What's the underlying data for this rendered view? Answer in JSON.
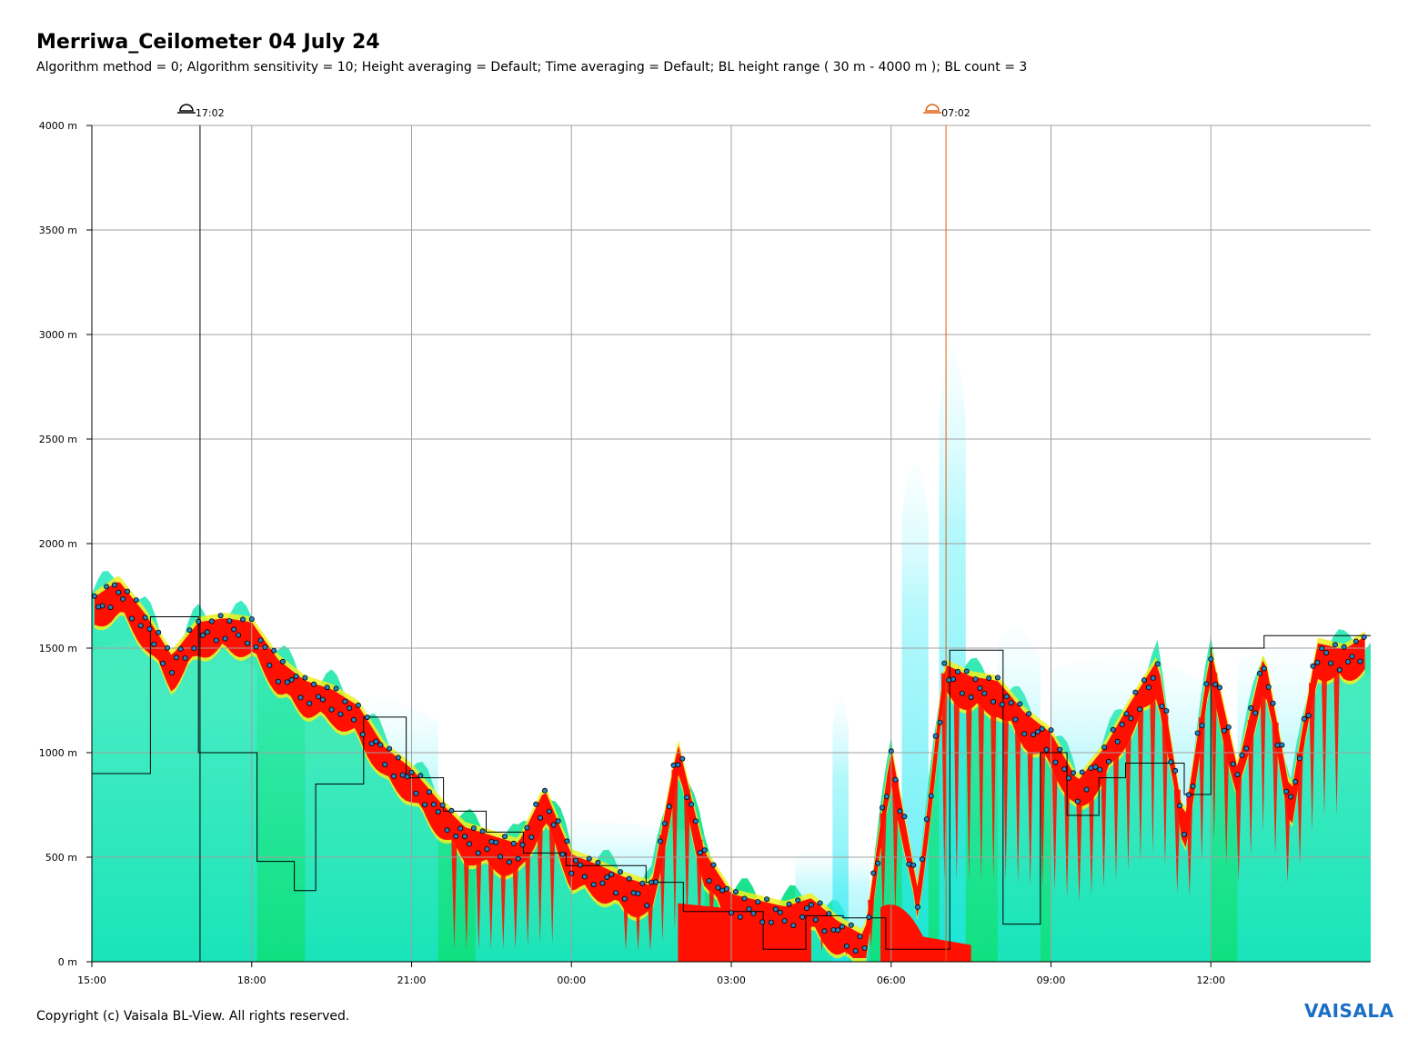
{
  "title": "Merriwa_Ceilometer 04 July 24",
  "subtitle": "Algorithm method = 0; Algorithm sensitivity = 10; Height averaging = Default; Time averaging = Default; BL height range ( 30 m - 4000 m ); BL count = 3",
  "footer": "Copyright (c) Vaisala BL-View. All rights reserved.",
  "brand": "VAISALA",
  "colors": {
    "grid": "#a0a0a0",
    "sunset_line": "#000000",
    "sunrise_line": "#e06010",
    "backscatter_low": "#10e090",
    "backscatter_haze": "#20e8f0",
    "backscatter_mid": "#f0f020",
    "backscatter_high": "#ff1000",
    "bl_marker_fill": "#2a7fc0",
    "bl_marker_stroke": "#000000",
    "bl_step_line": "#000000"
  },
  "chart_data": {
    "type": "heatmap",
    "description_series": [
      "Backscatter intensity",
      "Boundary layer height (detected)"
    ],
    "xlabel": "",
    "ylabel": "",
    "x_ticks": [
      "15:00",
      "18:00",
      "21:00",
      "00:00",
      "03:00",
      "06:00",
      "09:00",
      "12:00"
    ],
    "y_ticks": [
      "0 m",
      "500 m",
      "1000 m",
      "1500 m",
      "2000 m",
      "2500 m",
      "3000 m",
      "3500 m",
      "4000 m"
    ],
    "x_range_hours": [
      0,
      24
    ],
    "y_range_m": [
      0,
      4000
    ],
    "grid": true,
    "markers": [
      {
        "name": "sunset",
        "label": "17:02",
        "hour": 2.03
      },
      {
        "name": "sunrise",
        "label": "07:02",
        "hour": 16.03
      }
    ],
    "bl_height": {
      "x": [
        0.05,
        0.5,
        1.0,
        1.5,
        2.0,
        2.5,
        3.0,
        3.5,
        4.0,
        4.5,
        5.0,
        5.5,
        6.0,
        6.5,
        7.0,
        7.5,
        8.0,
        8.5,
        9.0,
        9.5,
        10.0,
        10.5,
        11.0,
        11.5,
        12.0,
        12.5,
        13.0,
        13.5,
        14.0,
        14.5,
        15.0,
        15.5,
        16.0,
        16.5,
        17.0,
        17.5,
        18.0,
        18.5,
        19.0,
        19.5,
        20.0,
        20.5,
        21.0,
        21.5,
        22.0,
        22.5,
        23.0,
        23.5,
        23.95
      ],
      "values": [
        1700,
        1780,
        1620,
        1420,
        1580,
        1600,
        1580,
        1400,
        1300,
        1260,
        1180,
        980,
        880,
        730,
        600,
        560,
        520,
        780,
        470,
        420,
        360,
        320,
        1000,
        480,
        280,
        250,
        220,
        260,
        150,
        80,
        980,
        300,
        1380,
        1320,
        1300,
        1150,
        1050,
        820,
        980,
        1200,
        1400,
        620,
        1450,
        880,
        1430,
        750,
        1480,
        1450,
        1520
      ]
    },
    "bl_step": {
      "x": [
        0.0,
        1.1,
        1.1,
        2.0,
        2.0,
        3.1,
        3.1,
        3.8,
        3.8,
        4.2,
        4.2,
        5.1,
        5.1,
        5.9,
        5.9,
        6.6,
        6.6,
        7.4,
        7.4,
        8.1,
        8.1,
        8.9,
        8.9,
        10.4,
        10.4,
        11.1,
        11.1,
        12.6,
        12.6,
        13.4,
        13.4,
        14.1,
        14.1,
        14.9,
        14.9,
        15.9,
        15.9,
        16.1,
        16.1,
        17.1,
        17.1,
        17.8,
        17.8,
        18.3,
        18.3,
        18.9,
        18.9,
        19.4,
        19.4,
        20.5,
        20.5,
        21.0,
        21.0,
        22.0,
        22.0,
        24.0
      ],
      "values": [
        900,
        900,
        1650,
        1650,
        1000,
        1000,
        480,
        480,
        340,
        340,
        850,
        850,
        1170,
        1170,
        880,
        880,
        720,
        720,
        620,
        620,
        520,
        520,
        460,
        460,
        380,
        380,
        240,
        240,
        60,
        60,
        220,
        220,
        210,
        210,
        60,
        60,
        60,
        60,
        1490,
        1490,
        180,
        180,
        1000,
        1000,
        700,
        700,
        880,
        880,
        950,
        950,
        800,
        800,
        1500,
        1500,
        1560,
        1560
      ]
    }
  }
}
